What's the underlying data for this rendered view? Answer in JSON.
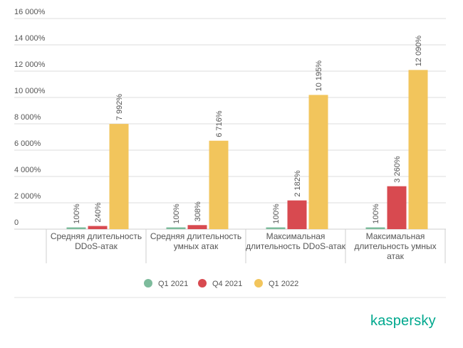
{
  "chart_data": {
    "type": "bar",
    "title": "",
    "xlabel": "",
    "ylabel": "",
    "ylim": [
      0,
      16000
    ],
    "y_ticks": [
      0,
      2000,
      4000,
      6000,
      8000,
      10000,
      12000,
      14000,
      16000
    ],
    "y_tick_labels": [
      "0",
      "2 000%",
      "4 000%",
      "6 000%",
      "8 000%",
      "10 000%",
      "12 000%",
      "14 000%",
      "16 000%"
    ],
    "grid": true,
    "legend_position": "bottom",
    "categories": [
      [
        "Средняя длительность",
        "DDoS-атак"
      ],
      [
        "Средняя длительность",
        "умных атак"
      ],
      [
        "Максимальная",
        "длительность DDoS-атак"
      ],
      [
        "Максимальная",
        "длительность умных",
        "атак"
      ]
    ],
    "series": [
      {
        "name": "Q1 2021",
        "color": "#7dbb9c",
        "values": [
          100,
          100,
          100,
          100
        ],
        "labels": [
          "100%",
          "100%",
          "100%",
          "100%"
        ]
      },
      {
        "name": "Q4 2021",
        "color": "#d84a50",
        "values": [
          240,
          308,
          2182,
          3260
        ],
        "labels": [
          "240%",
          "308%",
          "2 182%",
          "3 260%"
        ]
      },
      {
        "name": "Q1 2022",
        "color": "#f2c55c",
        "values": [
          7992,
          6716,
          10195,
          12090
        ],
        "labels": [
          "7 992%",
          "6 716%",
          "10 195%",
          "12 090%"
        ]
      }
    ]
  },
  "brand": {
    "name": "kaspersky",
    "color": "#00a88e"
  }
}
